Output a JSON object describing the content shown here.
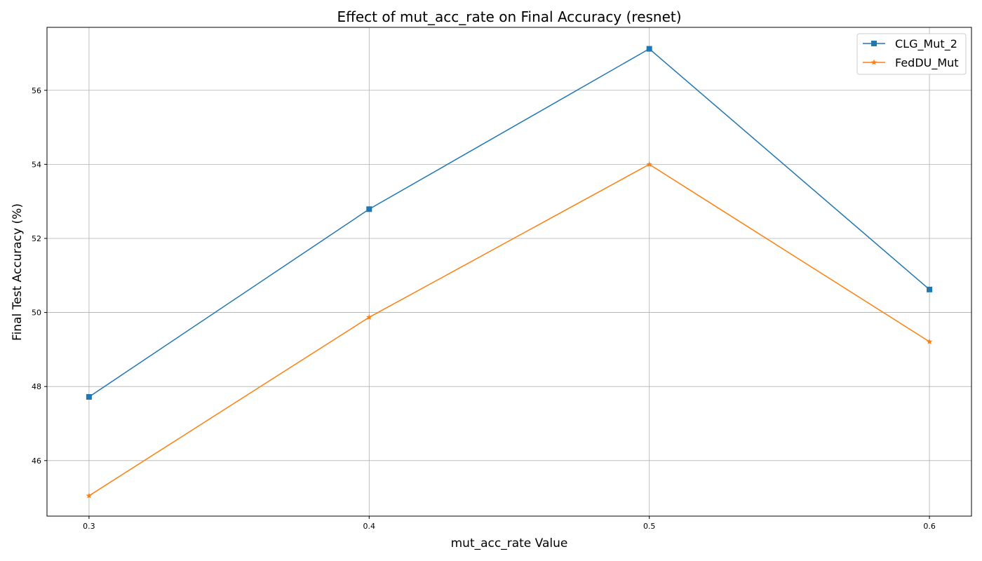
{
  "chart_data": {
    "type": "line",
    "title": "Effect of mut_acc_rate on Final Accuracy (resnet)",
    "xlabel": "mut_acc_rate Value",
    "ylabel": "Final Test Accuracy (%)",
    "x": [
      0.3,
      0.4,
      0.5,
      0.6
    ],
    "x_tick_labels": [
      "0.3",
      "0.4",
      "0.5",
      "0.6"
    ],
    "xlim": [
      0.285,
      0.615
    ],
    "ylim": [
      44.5,
      57.7
    ],
    "y_ticks": [
      46,
      48,
      50,
      52,
      54,
      56
    ],
    "grid": true,
    "legend_position": "top-right",
    "series": [
      {
        "name": "CLG_Mut_2",
        "values": [
          47.72,
          52.79,
          57.12,
          50.62
        ],
        "color": "#1f77b4",
        "marker": "square"
      },
      {
        "name": "FedDU_Mut",
        "values": [
          45.05,
          49.87,
          54.0,
          49.21
        ],
        "color": "#ff7f0e",
        "marker": "star"
      }
    ]
  }
}
